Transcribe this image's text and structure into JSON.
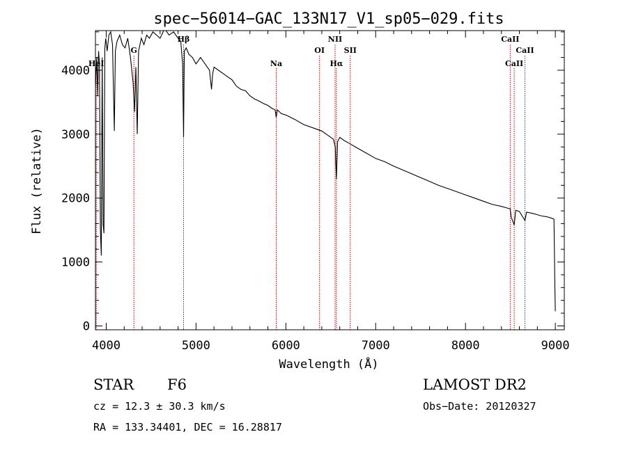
{
  "chart_data": {
    "type": "line",
    "title": "spec−56014−GAC_133N17_V1_sp05−029.fits",
    "xlabel": "Wavelength (Å)",
    "ylabel": "Flux (relative)",
    "xlim": [
      3880,
      9100
    ],
    "ylim": [
      -60,
      4620
    ],
    "x_ticks": [
      4000,
      5000,
      6000,
      7000,
      8000,
      9000
    ],
    "y_ticks": [
      0,
      1000,
      2000,
      3000,
      4000
    ],
    "grid": false,
    "legend": "none",
    "series": [
      {
        "x": [
          3880,
          3895,
          3905,
          3915,
          3925,
          3935,
          3945,
          3955,
          3965,
          3975,
          3985,
          3995,
          4010,
          4030,
          4050,
          4070,
          4090,
          4102,
          4120,
          4150,
          4180,
          4210,
          4240,
          4270,
          4300,
          4315,
          4330,
          4345,
          4360,
          4390,
          4420,
          4450,
          4480,
          4520,
          4560,
          4600,
          4650,
          4700,
          4750,
          4800,
          4830,
          4850,
          4861,
          4870,
          4890,
          4920,
          4960,
          5000,
          5050,
          5100,
          5150,
          5172,
          5185,
          5200,
          5250,
          5300,
          5350,
          5400,
          5450,
          5500,
          5550,
          5600,
          5650,
          5700,
          5750,
          5800,
          5850,
          5880,
          5893,
          5905,
          5950,
          6000,
          6100,
          6200,
          6300,
          6400,
          6450,
          6500,
          6530,
          6550,
          6563,
          6575,
          6600,
          6650,
          6700,
          6800,
          6900,
          7000,
          7100,
          7200,
          7300,
          7400,
          7500,
          7600,
          7700,
          7800,
          7900,
          8000,
          8100,
          8200,
          8300,
          8400,
          8450,
          8498,
          8510,
          8542,
          8560,
          8600,
          8662,
          8680,
          8750,
          8800,
          8850,
          8900,
          8950,
          8985,
          8995,
          9000
        ],
        "y": [
          3750,
          4200,
          3600,
          4300,
          4100,
          1500,
          1100,
          4200,
          1600,
          1450,
          4350,
          4500,
          4300,
          4550,
          4600,
          4400,
          3050,
          4300,
          4450,
          4550,
          4400,
          4350,
          4500,
          4200,
          3800,
          3350,
          4050,
          3000,
          4300,
          4500,
          4400,
          4550,
          4500,
          4600,
          4550,
          4500,
          4650,
          4550,
          4600,
          4500,
          4450,
          4100,
          2950,
          4300,
          4350,
          4250,
          4200,
          4100,
          4200,
          4100,
          4000,
          3700,
          3950,
          4050,
          4000,
          3950,
          3900,
          3850,
          3750,
          3700,
          3680,
          3600,
          3550,
          3520,
          3480,
          3450,
          3400,
          3380,
          3260,
          3380,
          3320,
          3300,
          3230,
          3150,
          3100,
          3050,
          3000,
          2950,
          2920,
          2800,
          2300,
          2880,
          2950,
          2900,
          2860,
          2780,
          2700,
          2620,
          2570,
          2500,
          2440,
          2380,
          2320,
          2260,
          2200,
          2150,
          2100,
          2050,
          2000,
          1950,
          1900,
          1870,
          1850,
          1830,
          1700,
          1580,
          1810,
          1790,
          1650,
          1780,
          1760,
          1740,
          1720,
          1710,
          1690,
          1670,
          600,
          230
        ]
      }
    ],
    "line_markers": [
      {
        "label": "HeI",
        "x": 3889,
        "row": 3
      },
      {
        "label": "G",
        "x": 4308,
        "row": 2
      },
      {
        "label": "Hβ",
        "x": 4861,
        "row": 0
      },
      {
        "label": "Na",
        "x": 5893,
        "row": 3
      },
      {
        "label": "OI",
        "x": 6375,
        "row": 2
      },
      {
        "label": "NII",
        "x": 6548,
        "row": 1
      },
      {
        "label": "Hα",
        "x": 6563,
        "row": 3
      },
      {
        "label": "SII",
        "x": 6717,
        "row": 2
      },
      {
        "label": "CaII",
        "x": 8498,
        "row": 1
      },
      {
        "label": "CaII",
        "x": 8542,
        "row": 3
      },
      {
        "label": "CaII",
        "x": 8662,
        "row": 2
      }
    ]
  },
  "info": {
    "object_type": "STAR",
    "subclass": "F6",
    "survey": "LAMOST DR2",
    "cz": "cz = 12.3 ± 30.3 km/s",
    "obs_date": "Obs−Date: 20120327",
    "coords": "RA = 133.34401, DEC =  16.28817"
  },
  "colors": {
    "spectrum": "#000000",
    "marker_line": "#c00000",
    "axes": "#000000",
    "background": "#ffffff"
  }
}
